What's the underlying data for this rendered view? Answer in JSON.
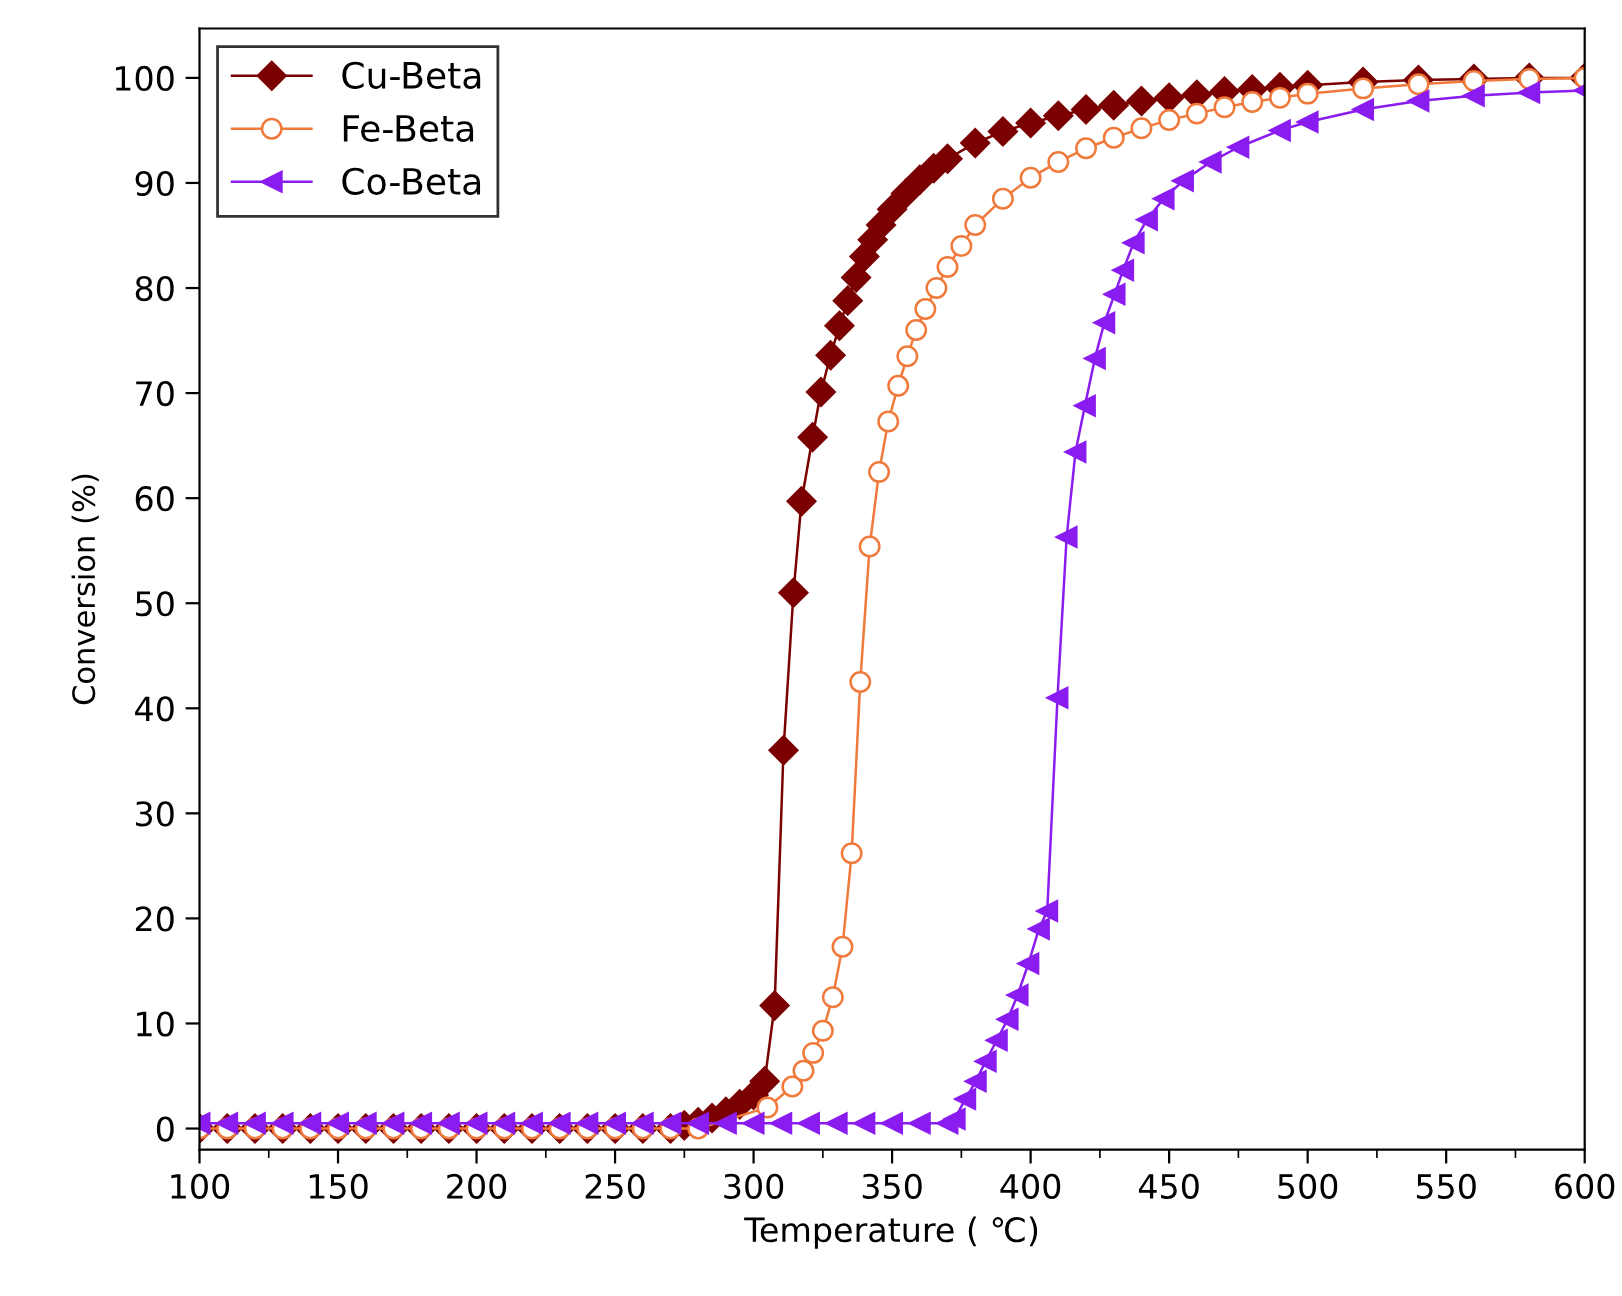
{
  "chart_data": {
    "type": "line",
    "xlabel": "Temperature ( ℃)",
    "ylabel": "Conversion (%)",
    "xlim": [
      100,
      600
    ],
    "ylim": [
      -2,
      104.7
    ],
    "xticks": [
      100,
      150,
      200,
      250,
      300,
      350,
      400,
      450,
      500,
      550,
      600
    ],
    "yticks": [
      0,
      10,
      20,
      30,
      40,
      50,
      60,
      70,
      80,
      90,
      100
    ],
    "grid": false,
    "legend": "top left",
    "line_style": "solid",
    "series": [
      {
        "name": "Cu-Beta",
        "color": "#7b0000",
        "marker": "diamond",
        "x": [
          100,
          110,
          120,
          130,
          140,
          150,
          160,
          170,
          180,
          190,
          200,
          210,
          220,
          230,
          240,
          250,
          260,
          270,
          275,
          280,
          285,
          290,
          295,
          300,
          304,
          307.6,
          310.8,
          314.4,
          317.3,
          321.3,
          324.3,
          327.8,
          331,
          334,
          337,
          340,
          343,
          346,
          350,
          355,
          360,
          365,
          370,
          380,
          390,
          400,
          410,
          420,
          430,
          440,
          450,
          460,
          470,
          480,
          490,
          500,
          520,
          540,
          560,
          580,
          600
        ],
        "values": [
          0,
          0,
          0,
          0,
          0,
          0,
          0,
          0,
          0,
          0,
          0,
          0,
          0,
          0,
          0,
          0,
          0,
          0,
          0.3,
          0.6,
          1,
          1.6,
          2.3,
          3.2,
          4.5,
          11.7,
          36,
          51,
          59.7,
          65.8,
          70.1,
          73.6,
          76.4,
          78.8,
          81,
          83,
          84.6,
          86,
          87.5,
          89,
          90.3,
          91.4,
          92.3,
          93.8,
          94.9,
          95.7,
          96.4,
          97,
          97.4,
          97.8,
          98.1,
          98.4,
          98.7,
          98.9,
          99.1,
          99.3,
          99.6,
          99.8,
          99.9,
          100,
          100
        ]
      },
      {
        "name": "Fe-Beta",
        "color": "#f07a3c",
        "marker": "circle",
        "x": [
          100,
          110,
          120,
          130,
          140,
          150,
          160,
          170,
          180,
          190,
          200,
          210,
          220,
          230,
          240,
          250,
          260,
          270,
          280,
          305,
          314,
          318,
          321.5,
          325,
          328.6,
          332.1,
          335.4,
          338.5,
          341.9,
          345.3,
          348.6,
          352.2,
          355.5,
          358.7,
          362,
          366,
          370,
          375,
          380,
          390,
          400,
          410,
          420,
          430,
          440,
          450,
          460,
          470,
          480,
          490,
          500,
          520,
          540,
          560,
          580,
          600
        ],
        "values": [
          0,
          0,
          0,
          0,
          0,
          0,
          0,
          0,
          0,
          0,
          0,
          0,
          0,
          0,
          0,
          0,
          0,
          0,
          0,
          2,
          4,
          5.5,
          7.2,
          9.3,
          12.5,
          17.3,
          26.2,
          42.5,
          55.4,
          62.5,
          67.3,
          70.7,
          73.5,
          76,
          78,
          80,
          82,
          84,
          86,
          88.5,
          90.5,
          92,
          93.3,
          94.3,
          95.2,
          96,
          96.6,
          97.2,
          97.7,
          98.1,
          98.5,
          99,
          99.4,
          99.7,
          99.9,
          100
        ]
      },
      {
        "name": "Co-Beta",
        "color": "#8a1cf0",
        "marker": "triangle",
        "x": [
          100,
          110,
          120,
          130,
          140,
          150,
          160,
          170,
          180,
          190,
          200,
          210,
          220,
          230,
          240,
          250,
          260,
          270,
          280,
          290,
          300,
          310,
          320,
          330,
          340,
          350,
          360,
          370,
          372.6,
          376.4,
          380.2,
          383.8,
          387.8,
          391.7,
          395.3,
          399.2,
          403,
          406,
          409.7,
          413,
          416.2,
          419.6,
          423.2,
          426.6,
          430.3,
          433.4,
          437.2,
          442,
          448,
          455,
          465,
          475,
          490,
          500,
          520,
          540,
          560,
          580,
          600
        ],
        "values": [
          0.5,
          0.5,
          0.5,
          0.5,
          0.5,
          0.5,
          0.5,
          0.5,
          0.5,
          0.5,
          0.5,
          0.5,
          0.5,
          0.5,
          0.5,
          0.5,
          0.5,
          0.5,
          0.5,
          0.5,
          0.5,
          0.5,
          0.5,
          0.5,
          0.5,
          0.5,
          0.5,
          0.5,
          0.9,
          2.8,
          4.5,
          6.4,
          8.4,
          10.4,
          12.7,
          15.7,
          19,
          20.7,
          41,
          56.3,
          64.4,
          68.8,
          73.3,
          76.7,
          79.4,
          81.7,
          84.3,
          86.5,
          88.5,
          90.2,
          92,
          93.4,
          95,
          95.8,
          97,
          97.8,
          98.3,
          98.6,
          98.8
        ]
      }
    ]
  }
}
